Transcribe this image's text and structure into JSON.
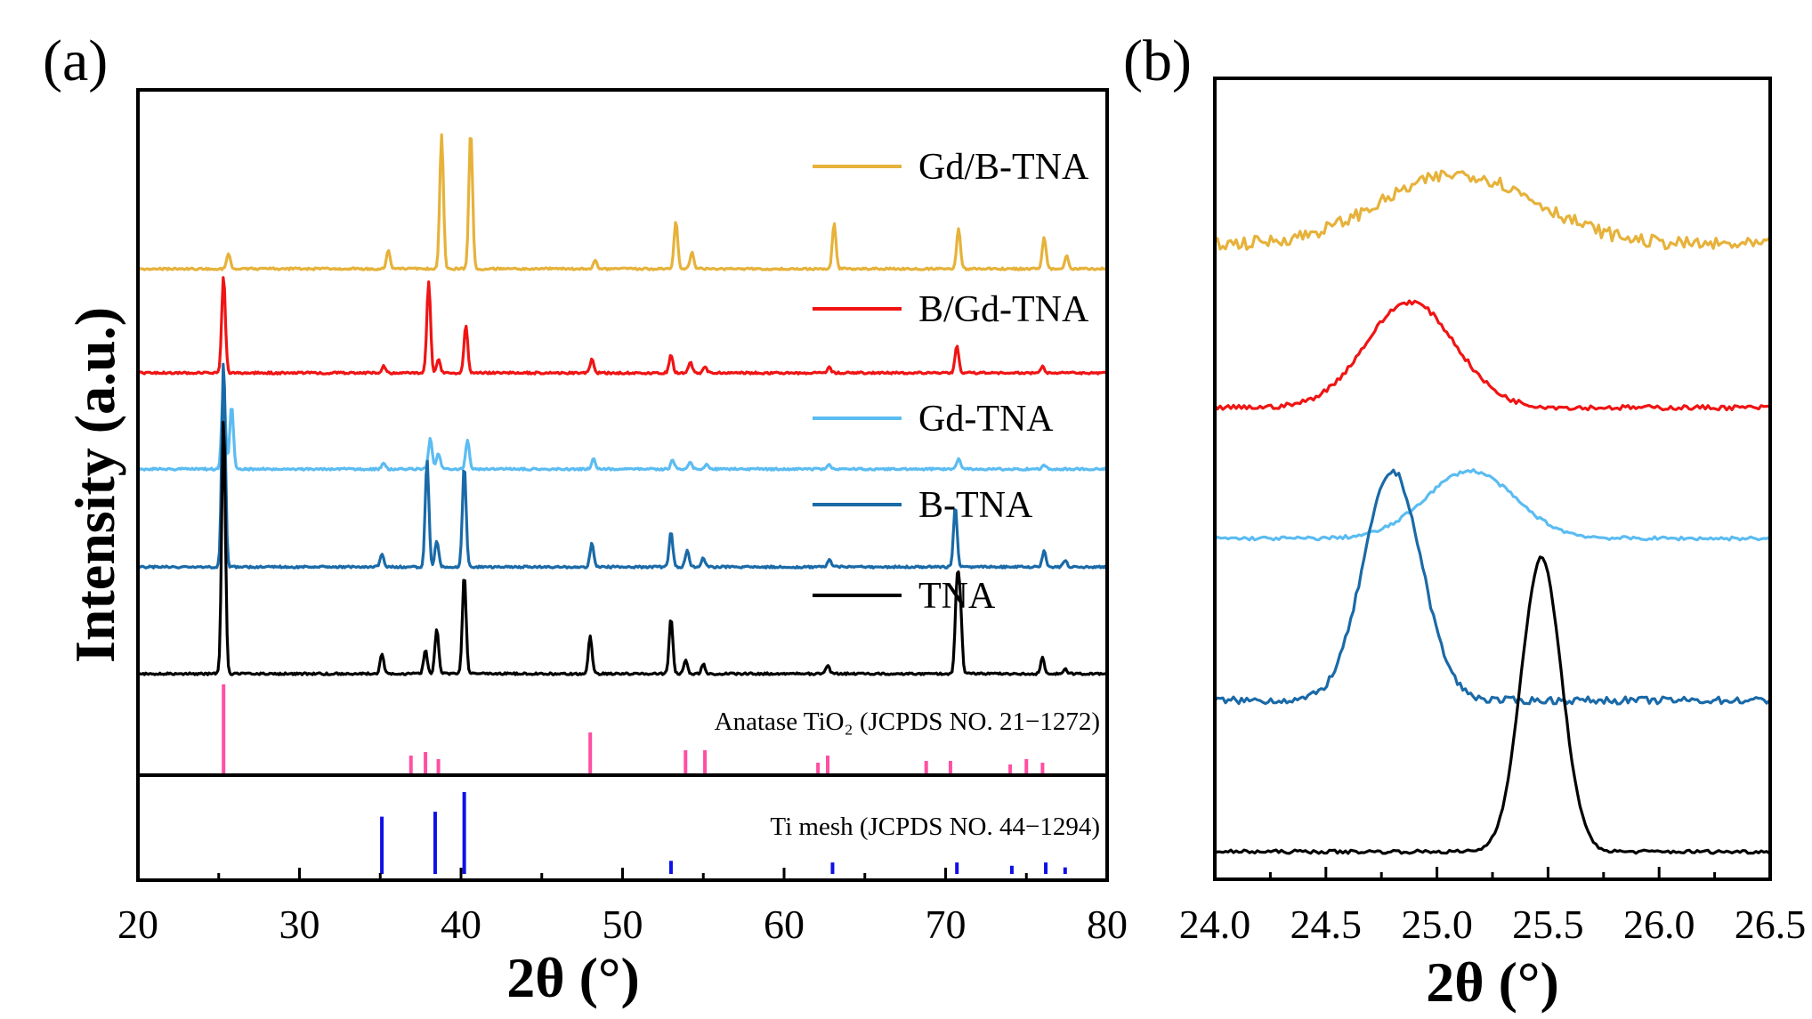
{
  "chart_data": [
    {
      "type": "line",
      "panel_label": "(a)",
      "xlabel": "2θ (°)",
      "ylabel": "Intensity (a.u.)",
      "xlim": [
        20,
        80
      ],
      "xticks": [
        "20",
        "30",
        "40",
        "50",
        "60",
        "70",
        "80"
      ],
      "y_ticks_shown": false,
      "legend": {
        "position": "upper-right",
        "entries": [
          "Gd/B-TNA",
          "B/Gd-TNA",
          "Gd-TNA",
          "B-TNA",
          "TNA"
        ]
      },
      "series": [
        {
          "name": "Gd/B-TNA",
          "color": "#e6b23a",
          "baseline": 0.0,
          "peaks": [
            [
              25.6,
              0.12
            ],
            [
              35.5,
              0.14
            ],
            [
              38.8,
              1.0
            ],
            [
              40.6,
              1.04
            ],
            [
              48.3,
              0.06
            ],
            [
              53.3,
              0.36
            ],
            [
              54.3,
              0.12
            ],
            [
              63.1,
              0.34
            ],
            [
              70.8,
              0.3
            ],
            [
              76.1,
              0.24
            ],
            [
              77.5,
              0.1
            ]
          ]
        },
        {
          "name": "B/Gd-TNA",
          "color": "#f01414",
          "baseline": 0.0,
          "peaks": [
            [
              25.3,
              0.72
            ],
            [
              35.2,
              0.05
            ],
            [
              38.0,
              0.68
            ],
            [
              38.6,
              0.1
            ],
            [
              40.3,
              0.36
            ],
            [
              48.1,
              0.1
            ],
            [
              53.0,
              0.14
            ],
            [
              54.2,
              0.08
            ],
            [
              55.1,
              0.05
            ],
            [
              62.8,
              0.04
            ],
            [
              70.7,
              0.2
            ],
            [
              76.0,
              0.05
            ]
          ]
        },
        {
          "name": "Gd-TNA",
          "color": "#5bbcf2",
          "baseline": 0.0,
          "peaks": [
            [
              25.3,
              0.64
            ],
            [
              25.8,
              0.48
            ],
            [
              35.2,
              0.04
            ],
            [
              38.1,
              0.23
            ],
            [
              38.6,
              0.12
            ],
            [
              40.4,
              0.22
            ],
            [
              48.2,
              0.08
            ],
            [
              53.1,
              0.07
            ],
            [
              54.2,
              0.05
            ],
            [
              55.2,
              0.04
            ],
            [
              62.8,
              0.03
            ],
            [
              70.8,
              0.08
            ],
            [
              76.1,
              0.03
            ]
          ]
        },
        {
          "name": "B-TNA",
          "color": "#1a6aa8",
          "baseline": 0.0,
          "peaks": [
            [
              25.3,
              1.54
            ],
            [
              35.1,
              0.1
            ],
            [
              37.9,
              0.8
            ],
            [
              38.5,
              0.2
            ],
            [
              40.2,
              0.76
            ],
            [
              48.1,
              0.18
            ],
            [
              53.0,
              0.26
            ],
            [
              54.0,
              0.12
            ],
            [
              55.0,
              0.07
            ],
            [
              62.8,
              0.06
            ],
            [
              70.6,
              0.45
            ],
            [
              76.1,
              0.12
            ],
            [
              77.4,
              0.05
            ]
          ]
        },
        {
          "name": "TNA",
          "color": "#000000",
          "baseline": 0.0,
          "peaks": [
            [
              25.3,
              1.92
            ],
            [
              35.1,
              0.15
            ],
            [
              37.8,
              0.18
            ],
            [
              38.5,
              0.34
            ],
            [
              40.2,
              0.74
            ],
            [
              48.0,
              0.28
            ],
            [
              53.0,
              0.42
            ],
            [
              53.9,
              0.1
            ],
            [
              55.0,
              0.07
            ],
            [
              62.7,
              0.06
            ],
            [
              70.7,
              0.62
            ],
            [
              70.9,
              0.5
            ],
            [
              76.0,
              0.12
            ],
            [
              77.4,
              0.04
            ]
          ]
        }
      ],
      "reference_patterns": [
        {
          "name": "Anatase TiO₂ (JCPDS NO. 21−1272)",
          "color": "#ff4fa3",
          "x": [
            25.3,
            36.9,
            37.8,
            38.6,
            48.0,
            53.9,
            55.1,
            62.1,
            62.7,
            68.8,
            70.3,
            74.0,
            75.0,
            76.0
          ],
          "rel": [
            1.0,
            0.2,
            0.24,
            0.16,
            0.46,
            0.26,
            0.26,
            0.12,
            0.2,
            0.14,
            0.14,
            0.1,
            0.16,
            0.12
          ]
        },
        {
          "name": "Ti mesh  (JCPDS NO. 44−1294)",
          "color": "#1010e8",
          "x": [
            35.1,
            38.4,
            40.2,
            53.0,
            63.0,
            70.7,
            74.1,
            76.2,
            77.4
          ],
          "rel": [
            0.7,
            0.76,
            1.0,
            0.16,
            0.14,
            0.14,
            0.1,
            0.14,
            0.08
          ]
        }
      ]
    },
    {
      "type": "line",
      "panel_label": "(b)",
      "xlabel": "2θ (°)",
      "xlim": [
        24.0,
        26.5
      ],
      "xticks": [
        "24.0",
        "24.5",
        "25.0",
        "25.5",
        "26.0",
        "26.5"
      ],
      "y_ticks_shown": false,
      "series": [
        {
          "name": "Gd/B-TNA",
          "color": "#e6b23a",
          "peak_center": 25.1,
          "peak_width": 0.35,
          "peak_height": 0.24,
          "noise": 0.022
        },
        {
          "name": "B/Gd-TNA",
          "color": "#f01414",
          "peak_center": 24.88,
          "peak_width": 0.2,
          "peak_height": 0.36,
          "noise": 0.008
        },
        {
          "name": "Gd-TNA",
          "color": "#5bbcf2",
          "peak_center": 25.15,
          "peak_width": 0.2,
          "peak_height": 0.23,
          "noise": 0.006
        },
        {
          "name": "B-TNA",
          "color": "#1a6aa8",
          "peak_center": 24.8,
          "peak_width": 0.13,
          "peak_height": 0.78,
          "noise": 0.012
        },
        {
          "name": "TNA",
          "color": "#000000",
          "peak_center": 25.47,
          "peak_width": 0.09,
          "peak_height": 1.0,
          "noise": 0.006
        }
      ]
    }
  ]
}
